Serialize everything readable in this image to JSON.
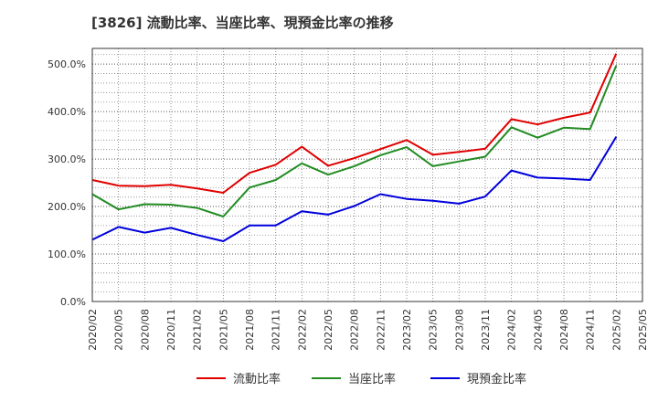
{
  "chart_data": {
    "type": "line",
    "title": "[3826]  流動比率、当座比率、現預金比率の推移",
    "xlabel": "",
    "ylabel": "",
    "ylim": [
      0,
      533
    ],
    "grid": true,
    "legend_position": "bottom",
    "x": [
      "2020/02",
      "2020/05",
      "2020/08",
      "2020/11",
      "2021/02",
      "2021/05",
      "2021/08",
      "2021/11",
      "2022/02",
      "2022/05",
      "2022/08",
      "2022/11",
      "2023/02",
      "2023/05",
      "2023/08",
      "2023/11",
      "2024/02",
      "2024/05",
      "2024/08",
      "2024/11",
      "2025/02",
      "2025/05"
    ],
    "y_ticks": [
      0,
      100,
      200,
      300,
      400,
      500
    ],
    "y_tick_labels": [
      "0.0%",
      "100.0%",
      "200.0%",
      "300.0%",
      "400.0%",
      "500.0%"
    ],
    "series": [
      {
        "name": "流動比率",
        "color": "#e00000",
        "values": [
          256,
          244,
          243,
          246,
          238,
          229,
          271,
          288,
          326,
          286,
          302,
          321,
          340,
          309,
          315,
          322,
          384,
          373,
          387,
          398,
          522,
          null
        ]
      },
      {
        "name": "当座比率",
        "color": "#228b22",
        "values": [
          226,
          194,
          205,
          204,
          197,
          179,
          240,
          256,
          291,
          267,
          285,
          308,
          325,
          285,
          295,
          305,
          367,
          345,
          366,
          363,
          497,
          null
        ]
      },
      {
        "name": "現預金比率",
        "color": "#0000dd",
        "values": [
          130,
          157,
          145,
          155,
          140,
          127,
          160,
          160,
          190,
          183,
          201,
          226,
          216,
          212,
          206,
          221,
          276,
          261,
          259,
          256,
          347,
          null
        ]
      }
    ]
  }
}
